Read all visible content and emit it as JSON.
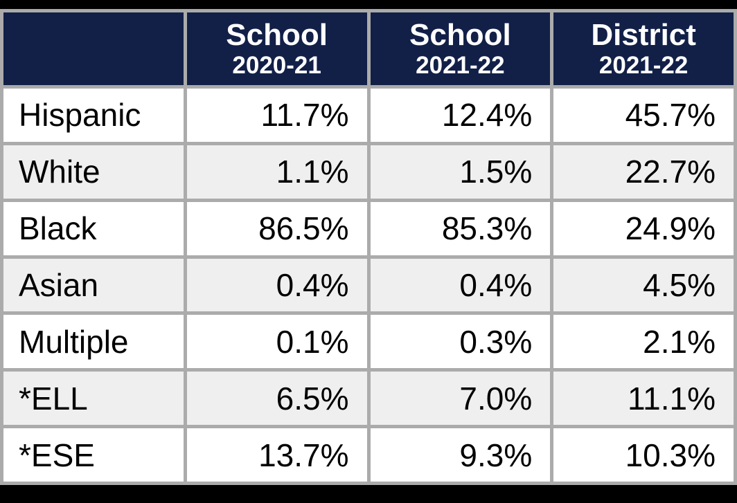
{
  "table": {
    "columns": [
      {
        "title": "",
        "year": ""
      },
      {
        "title": "School",
        "year": "2020-21"
      },
      {
        "title": "School",
        "year": "2021-22"
      },
      {
        "title": "District",
        "year": "2021-22"
      }
    ],
    "rows": [
      {
        "label": "Hispanic",
        "values": [
          "11.7%",
          "12.4%",
          "45.7%"
        ]
      },
      {
        "label": "White",
        "values": [
          "1.1%",
          "1.5%",
          "22.7%"
        ]
      },
      {
        "label": "Black",
        "values": [
          "86.5%",
          "85.3%",
          "24.9%"
        ]
      },
      {
        "label": "Asian",
        "values": [
          "0.4%",
          "0.4%",
          "4.5%"
        ]
      },
      {
        "label": "Multiple",
        "values": [
          "0.1%",
          "0.3%",
          "2.1%"
        ]
      },
      {
        "label": "*ELL",
        "values": [
          "6.5%",
          "7.0%",
          "11.1%"
        ]
      },
      {
        "label": "*ESE",
        "values": [
          "13.7%",
          "9.3%",
          "10.3%"
        ]
      }
    ]
  },
  "colors": {
    "header_bg": "#122048",
    "border": "#ababab",
    "row": "#ffffff",
    "row_alt": "#efefef",
    "frame": "#000000",
    "header_text": "#ffffff",
    "body_text": "#000000"
  },
  "chart_data": {
    "type": "table",
    "categories": [
      "Hispanic",
      "White",
      "Black",
      "Asian",
      "Multiple",
      "*ELL",
      "*ESE"
    ],
    "series": [
      {
        "name": "School 2020-21",
        "values": [
          11.7,
          1.1,
          86.5,
          0.4,
          0.1,
          6.5,
          13.7
        ]
      },
      {
        "name": "School 2021-22",
        "values": [
          12.4,
          1.5,
          85.3,
          0.4,
          0.3,
          7.0,
          9.3
        ]
      },
      {
        "name": "District 2021-22",
        "values": [
          45.7,
          22.7,
          24.9,
          4.5,
          2.1,
          11.1,
          10.3
        ]
      }
    ],
    "unit": "%",
    "title": "",
    "legend_position": "none",
    "grid": true
  }
}
